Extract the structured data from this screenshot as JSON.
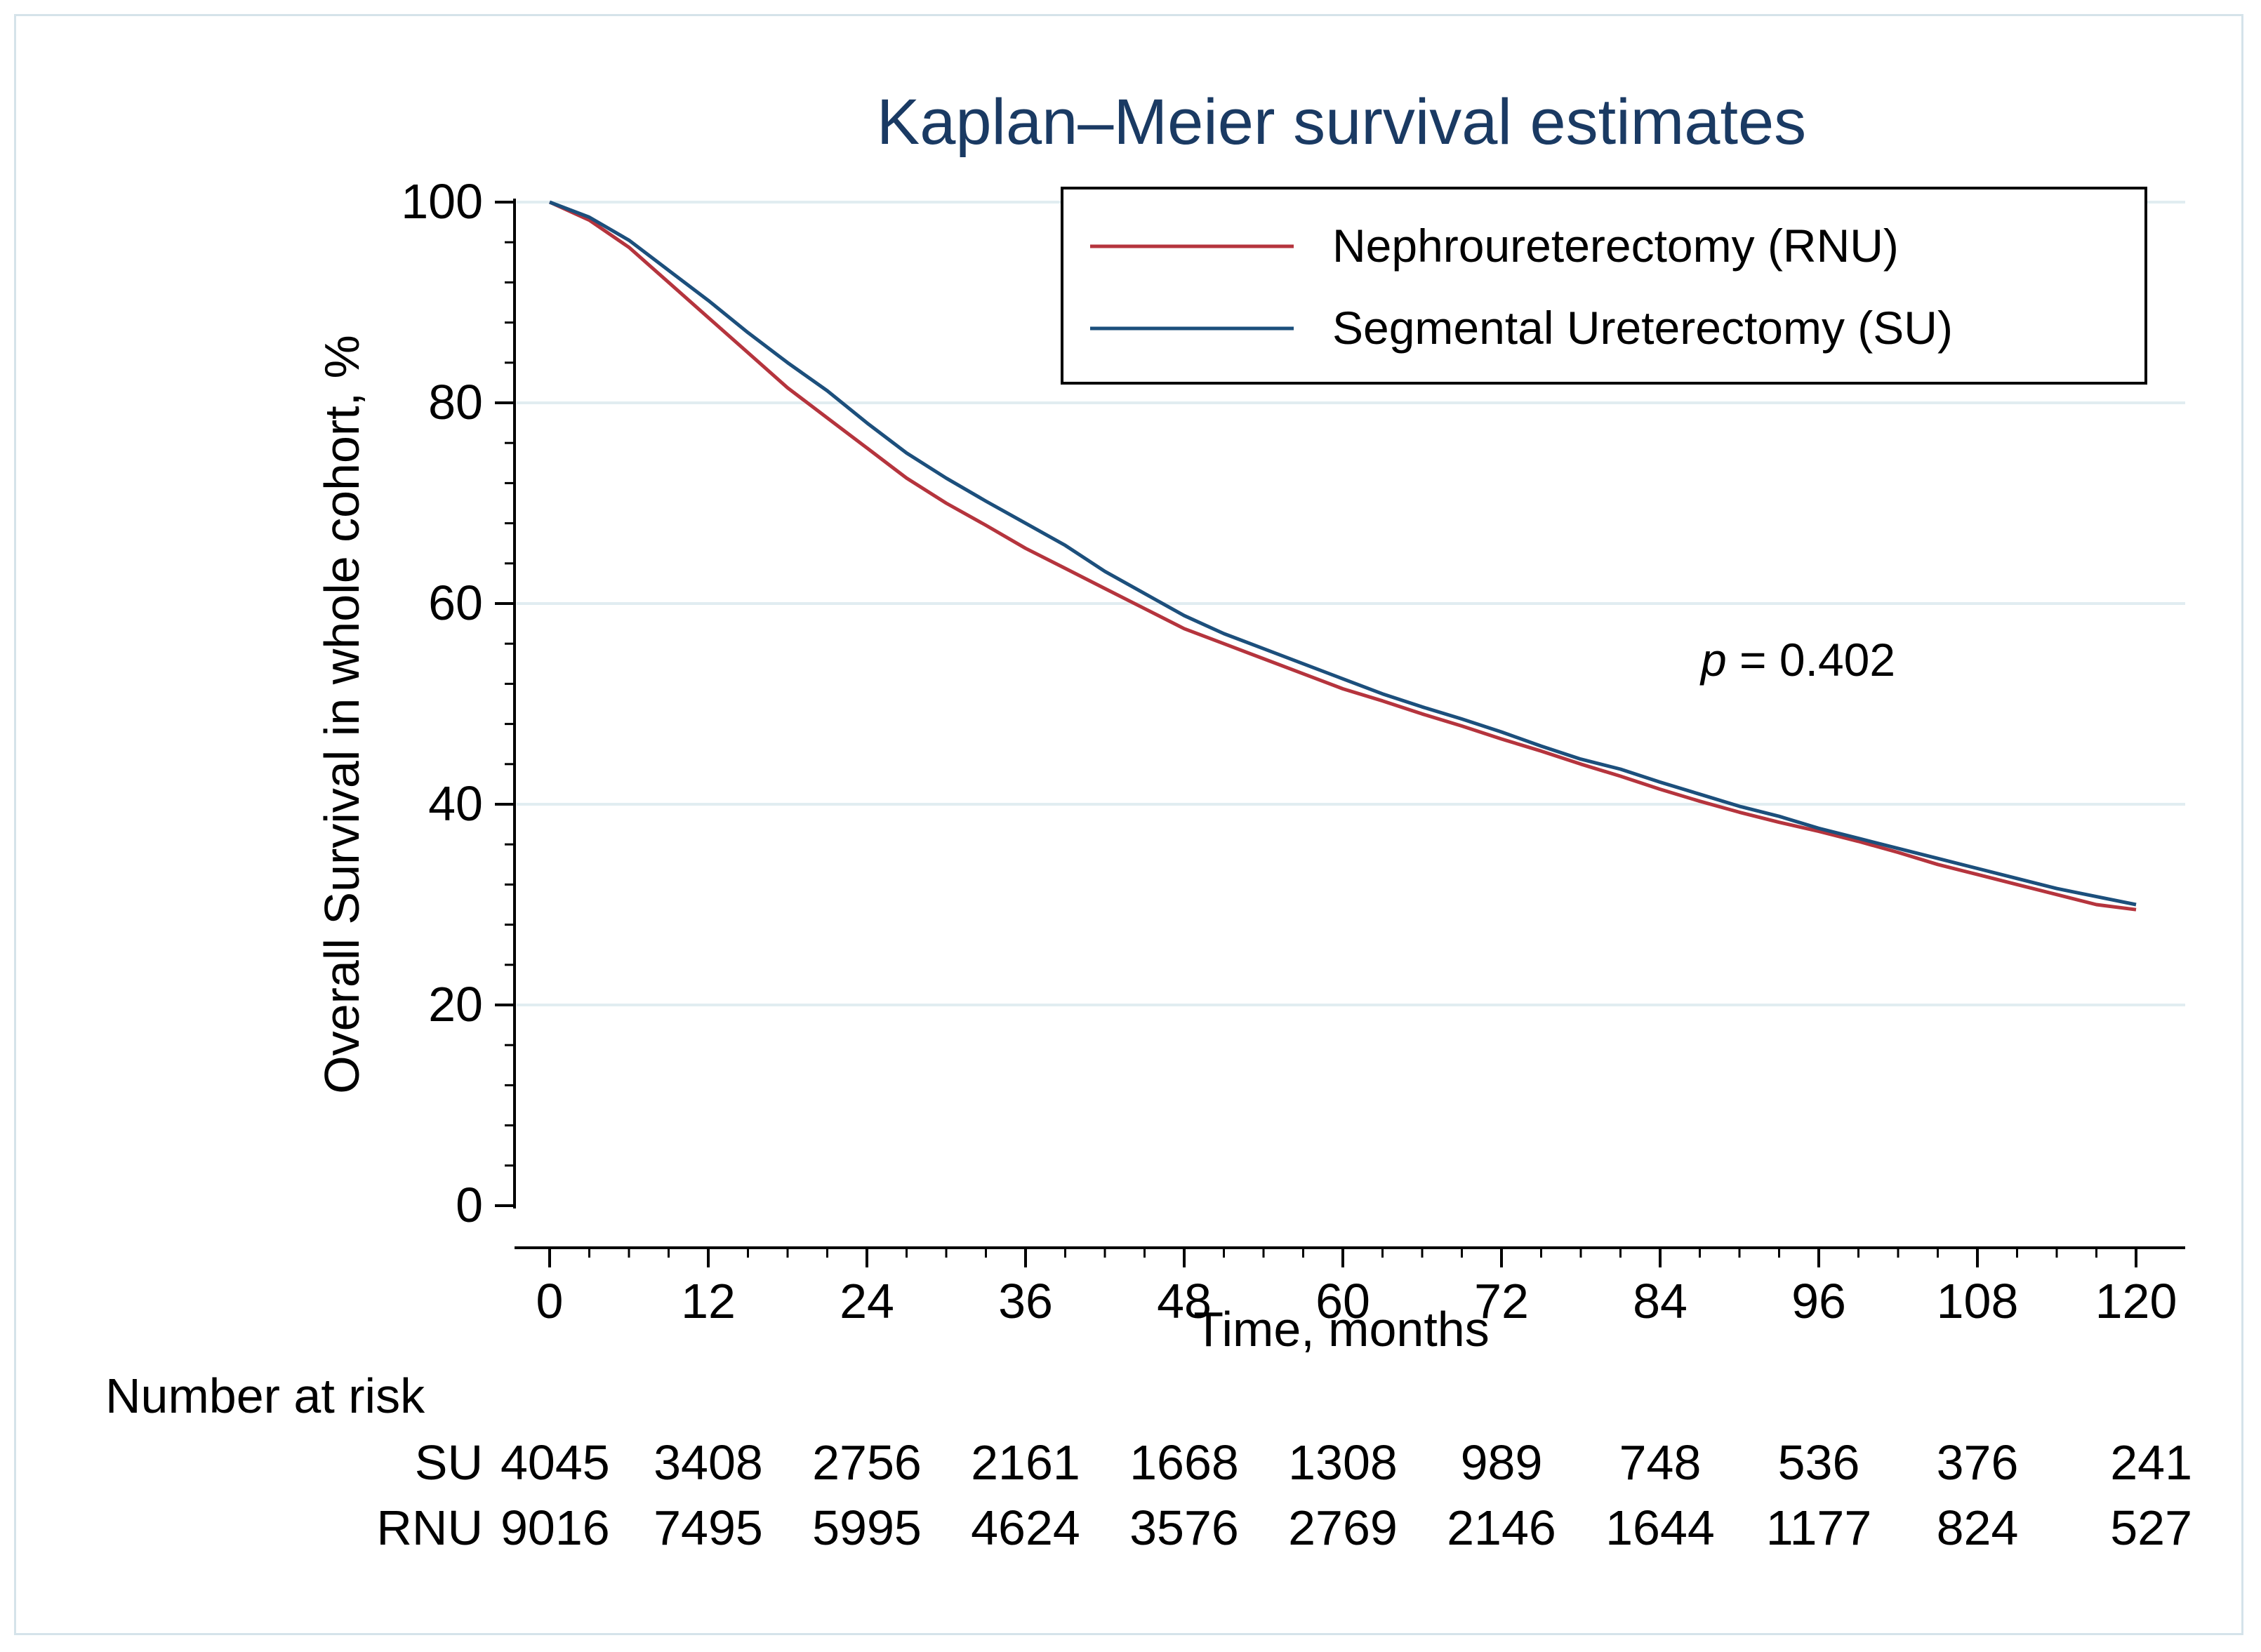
{
  "chart_data": {
    "type": "line",
    "title": "Kaplan–Meier survival estimates",
    "xlabel": "Time, months",
    "ylabel": "Overall Survival in whole cohort, %",
    "xlim": [
      0,
      120
    ],
    "ylim": [
      0,
      100
    ],
    "x_ticks": [
      "0",
      "12",
      "24",
      "36",
      "48",
      "60",
      "72",
      "84",
      "96",
      "108",
      "120"
    ],
    "y_ticks": [
      "0",
      "20",
      "40",
      "60",
      "80",
      "100"
    ],
    "grid": "horizontal",
    "legend_position": "top-right",
    "annotation": {
      "italic": "p",
      "text": " = 0.402"
    },
    "series": [
      {
        "name": "Nephroureterectomy (RNU)",
        "color": "#b5343d",
        "x": [
          0,
          3,
          6,
          9,
          12,
          15,
          18,
          21,
          24,
          27,
          30,
          33,
          36,
          39,
          42,
          45,
          48,
          51,
          54,
          57,
          60,
          63,
          66,
          69,
          72,
          75,
          78,
          81,
          84,
          87,
          90,
          93,
          96,
          99,
          102,
          105,
          108,
          111,
          114,
          117,
          120
        ],
        "values": [
          100,
          98.2,
          95.5,
          92,
          88.5,
          85,
          81.5,
          78.5,
          75.5,
          72.5,
          70,
          67.8,
          65.5,
          63.5,
          61.5,
          59.5,
          57.5,
          56,
          54.5,
          53,
          51.5,
          50.3,
          49,
          47.8,
          46.5,
          45.3,
          44,
          42.8,
          41.5,
          40.3,
          39.2,
          38.2,
          37.3,
          36.3,
          35.2,
          34,
          33,
          32,
          31,
          30,
          29.5
        ]
      },
      {
        "name": "Segmental Ureterectomy (SU)",
        "color": "#1c4f7c",
        "x": [
          0,
          3,
          6,
          9,
          12,
          15,
          18,
          21,
          24,
          27,
          30,
          33,
          36,
          39,
          42,
          45,
          48,
          51,
          54,
          57,
          60,
          63,
          66,
          69,
          72,
          75,
          78,
          81,
          84,
          87,
          90,
          93,
          96,
          99,
          102,
          105,
          108,
          111,
          114,
          117,
          120
        ],
        "values": [
          100,
          98.5,
          96.2,
          93.2,
          90.2,
          87,
          84,
          81.2,
          78,
          75,
          72.5,
          70.2,
          68,
          65.8,
          63.2,
          61,
          58.8,
          57,
          55.5,
          54,
          52.5,
          51,
          49.7,
          48.5,
          47.2,
          45.8,
          44.5,
          43.5,
          42.2,
          41,
          39.8,
          38.8,
          37.6,
          36.6,
          35.6,
          34.6,
          33.6,
          32.6,
          31.6,
          30.8,
          30
        ]
      }
    ],
    "risk_table": {
      "title": "Number at risk",
      "rows": [
        {
          "label": "SU",
          "values": [
            "4045",
            "3408",
            "2756",
            "2161",
            "1668",
            "1308",
            "989",
            "748",
            "536",
            "376",
            "241"
          ]
        },
        {
          "label": "RNU",
          "values": [
            "9016",
            "7495",
            "5995",
            "4624",
            "3576",
            "2769",
            "2146",
            "1644",
            "1177",
            "824",
            "527"
          ]
        }
      ]
    }
  }
}
